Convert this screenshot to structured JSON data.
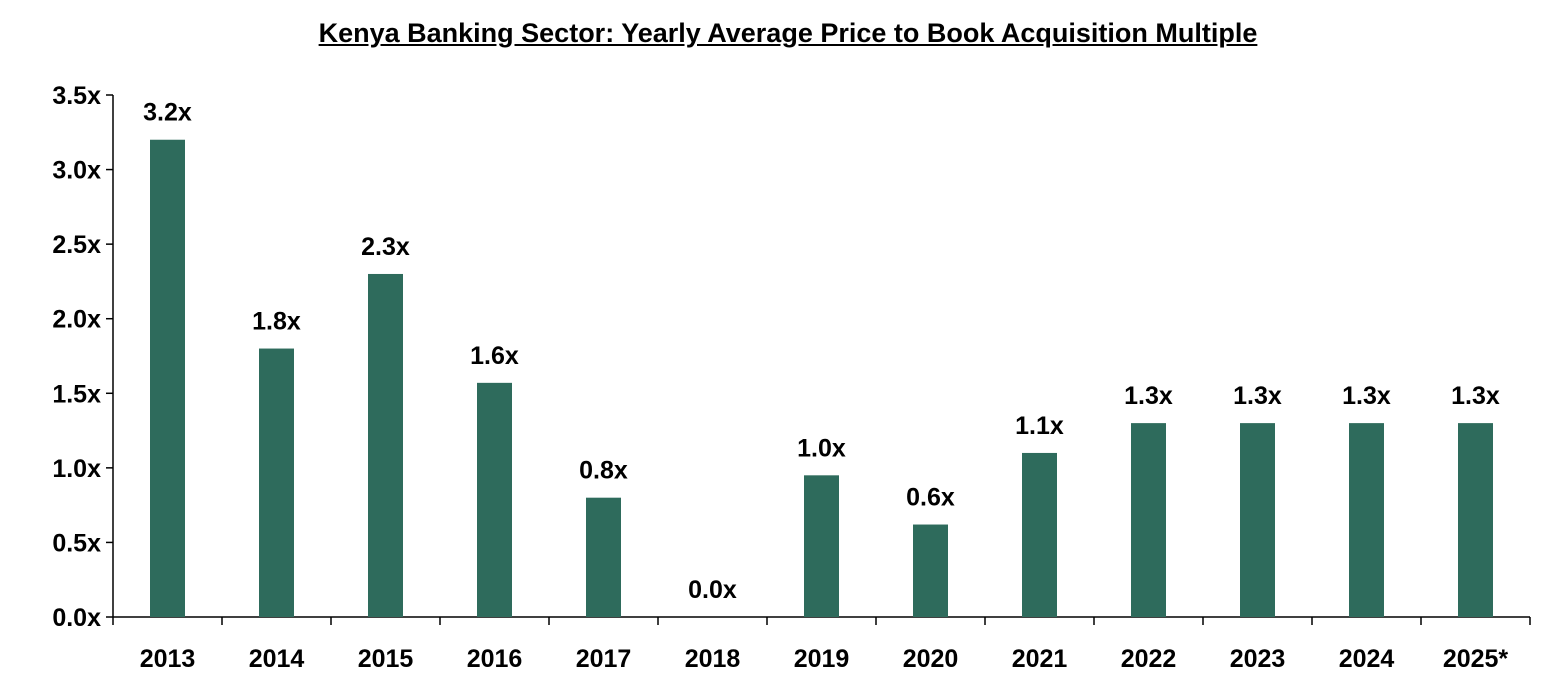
{
  "chart_data": {
    "type": "bar",
    "title": "Kenya Banking Sector: Yearly Average Price to Book Acquisition Multiple",
    "xlabel": "",
    "ylabel": "",
    "categories": [
      "2013",
      "2014",
      "2015",
      "2016",
      "2017",
      "2018",
      "2019",
      "2020",
      "2021",
      "2022",
      "2023",
      "2024",
      "2025*"
    ],
    "values": [
      3.2,
      1.8,
      2.3,
      1.57,
      0.8,
      0.0,
      0.95,
      0.62,
      1.1,
      1.3,
      1.3,
      1.3,
      1.3
    ],
    "data_labels": [
      "3.2x",
      "1.8x",
      "2.3x",
      "1.6x",
      "0.8x",
      "0.0x",
      "1.0x",
      "0.6x",
      "1.1x",
      "1.3x",
      "1.3x",
      "1.3x",
      "1.3x"
    ],
    "yticks": [
      0,
      0.5,
      1.0,
      1.5,
      2.0,
      2.5,
      3.0,
      3.5
    ],
    "ytick_labels": [
      "0.0x",
      "0.5x",
      "1.0x",
      "1.5x",
      "2.0x",
      "2.5x",
      "3.0x",
      "3.5x"
    ],
    "ylim": [
      0,
      3.5
    ],
    "grid": false,
    "legend": "none",
    "bar_color": "#2E6B5C"
  }
}
